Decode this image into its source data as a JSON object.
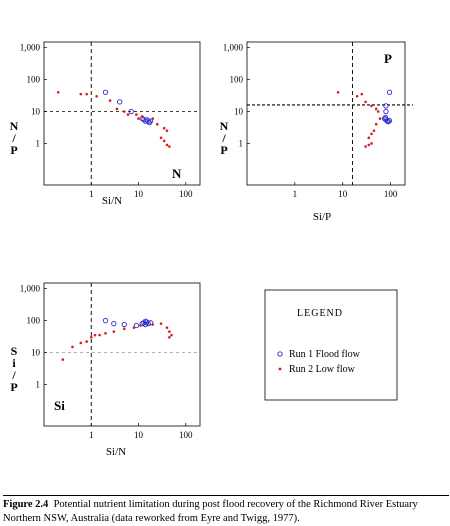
{
  "figure": {
    "caption_label": "Figure 2.4",
    "caption_text": "Potential nutrient limitation during post flood recovery of the Richmond River Estuary Northern NSW, Australia (data reworked from Eyre and Twigg, 1977)."
  },
  "legend": {
    "title": "LEGEND",
    "entries": [
      {
        "marker": "o",
        "label": "Run 1  Flood flow",
        "color": "#2b2bd0"
      },
      {
        "marker": "•",
        "label": "Run 2  Low flow",
        "color": "#e01818"
      }
    ]
  },
  "colors": {
    "run1": "#2b2bd0",
    "run2": "#e01818"
  },
  "chart_data": [
    {
      "type": "scatter",
      "corner_label": "N",
      "xlabel": "Si/N",
      "ylabel": [
        "N",
        "/",
        "P"
      ],
      "xscale": "log",
      "yscale": "log",
      "xlim": [
        0.1,
        200
      ],
      "ylim": [
        0.05,
        1500
      ],
      "xticks": [
        1,
        10,
        100
      ],
      "xtick_labels": [
        "1",
        "10",
        "100"
      ],
      "yticks": [
        1,
        10,
        100,
        1000
      ],
      "ytick_labels": [
        "1",
        "10",
        "100",
        "1,000"
      ],
      "vline": 1,
      "hline": 10,
      "series": [
        {
          "marker": "circle",
          "points": [
            [
              2,
              40
            ],
            [
              4,
              20
            ],
            [
              7,
              10
            ],
            [
              12,
              6
            ],
            [
              14,
              5
            ],
            [
              15,
              5.5
            ],
            [
              16,
              5
            ],
            [
              17,
              4.5
            ],
            [
              13,
              5.5
            ],
            [
              18,
              5
            ]
          ]
        },
        {
          "marker": "dot",
          "points": [
            [
              0.2,
              40
            ],
            [
              0.6,
              35
            ],
            [
              0.8,
              35
            ],
            [
              1.3,
              30
            ],
            [
              2.5,
              22
            ],
            [
              3.5,
              12
            ],
            [
              5,
              10
            ],
            [
              6,
              8
            ],
            [
              9,
              8
            ],
            [
              10,
              6
            ],
            [
              12,
              7
            ],
            [
              20,
              6
            ],
            [
              25,
              4
            ],
            [
              35,
              3
            ],
            [
              40,
              2.5
            ],
            [
              30,
              1.5
            ],
            [
              35,
              1.2
            ],
            [
              40,
              0.9
            ],
            [
              45,
              0.8
            ]
          ]
        }
      ]
    },
    {
      "type": "scatter",
      "corner_label": "P",
      "xlabel": "Si/P",
      "ylabel": [
        "N",
        "/",
        "P"
      ],
      "xscale": "log",
      "yscale": "log",
      "xlim": [
        0.1,
        200
      ],
      "ylim": [
        0.05,
        1500
      ],
      "xticks": [
        1,
        10,
        100
      ],
      "xtick_labels": [
        "1",
        "10",
        "100"
      ],
      "yticks": [
        1,
        10,
        100,
        1000
      ],
      "ytick_labels": [
        "1",
        "10",
        "100",
        "1,000"
      ],
      "vline": 16,
      "hline": 16,
      "series": [
        {
          "marker": "circle",
          "points": [
            [
              95,
              40
            ],
            [
              80,
              15
            ],
            [
              80,
              10
            ],
            [
              75,
              6
            ],
            [
              80,
              5.5
            ],
            [
              85,
              5
            ],
            [
              90,
              4.8
            ],
            [
              95,
              5.2
            ],
            [
              78,
              6.5
            ]
          ]
        },
        {
          "marker": "dot",
          "points": [
            [
              8,
              40
            ],
            [
              20,
              30
            ],
            [
              25,
              35
            ],
            [
              30,
              20
            ],
            [
              40,
              15
            ],
            [
              50,
              12
            ],
            [
              55,
              10
            ],
            [
              60,
              6
            ],
            [
              50,
              4
            ],
            [
              45,
              2.5
            ],
            [
              40,
              2
            ],
            [
              35,
              1.5
            ],
            [
              30,
              0.8
            ],
            [
              35,
              0.9
            ],
            [
              40,
              1.0
            ]
          ]
        }
      ]
    },
    {
      "type": "scatter",
      "corner_label": "Si",
      "xlabel": "Si/N",
      "ylabel": [
        "S",
        "i",
        "/",
        "P"
      ],
      "xscale": "log",
      "yscale": "log",
      "xlim": [
        0.1,
        200
      ],
      "ylim": [
        0.05,
        1500
      ],
      "xticks": [
        1,
        10,
        100
      ],
      "xtick_labels": [
        "1",
        "10",
        "100"
      ],
      "yticks": [
        1,
        10,
        100,
        1000
      ],
      "ytick_labels": [
        "1",
        "10",
        "100",
        "1,000"
      ],
      "vline": 1,
      "hline": 10,
      "series": [
        {
          "marker": "circle",
          "points": [
            [
              2,
              100
            ],
            [
              3,
              80
            ],
            [
              5,
              75
            ],
            [
              9,
              70
            ],
            [
              12,
              80
            ],
            [
              13,
              85
            ],
            [
              14,
              95
            ],
            [
              15,
              90
            ],
            [
              16,
              80
            ],
            [
              18,
              85
            ],
            [
              14,
              75
            ]
          ]
        },
        {
          "marker": "dot",
          "points": [
            [
              0.25,
              6
            ],
            [
              0.4,
              15
            ],
            [
              0.6,
              20
            ],
            [
              0.8,
              22
            ],
            [
              1,
              30
            ],
            [
              1.2,
              35
            ],
            [
              1.5,
              35
            ],
            [
              2,
              40
            ],
            [
              3,
              45
            ],
            [
              5,
              55
            ],
            [
              8,
              60
            ],
            [
              11,
              70
            ],
            [
              20,
              75
            ],
            [
              30,
              80
            ],
            [
              40,
              60
            ],
            [
              45,
              45
            ],
            [
              50,
              35
            ],
            [
              45,
              30
            ]
          ]
        }
      ]
    }
  ]
}
